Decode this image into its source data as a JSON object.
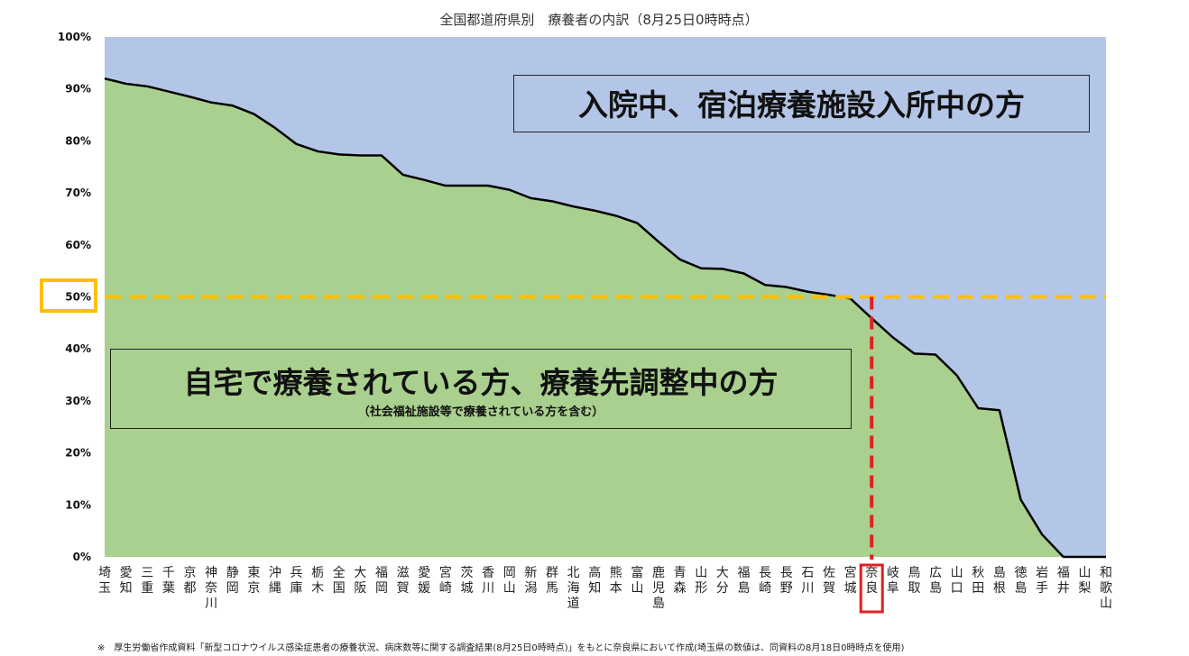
{
  "chart_data": {
    "type": "area",
    "title": "全国都道府県別　療養者の内訳（8月25日0時時点）",
    "ylim": [
      0,
      100
    ],
    "y_ticks": [
      "0%",
      "10%",
      "20%",
      "30%",
      "40%",
      "50%",
      "60%",
      "70%",
      "80%",
      "90%",
      "100%"
    ],
    "categories": [
      "埼玉",
      "愛知",
      "三重",
      "千葉",
      "京都",
      "神奈川",
      "静岡",
      "東京",
      "沖縄",
      "兵庫",
      "栃木",
      "全国",
      "大阪",
      "福岡",
      "滋賀",
      "愛媛",
      "宮崎",
      "茨城",
      "香川",
      "岡山",
      "新潟",
      "群馬",
      "北海道",
      "高知",
      "熊本",
      "富山",
      "鹿児島",
      "青森",
      "山形",
      "大分",
      "福島",
      "長崎",
      "長野",
      "石川",
      "佐賀",
      "宮城",
      "奈良",
      "岐阜",
      "鳥取",
      "広島",
      "山口",
      "秋田",
      "島根",
      "徳島",
      "岩手",
      "福井",
      "山梨",
      "和歌山"
    ],
    "series": [
      {
        "values": [
          92,
          91,
          90.5,
          89.5,
          88.5,
          87.4,
          86.8,
          85.2,
          82.5,
          79.4,
          78.0,
          77.4,
          77.2,
          77.2,
          73.5,
          72.5,
          71.4,
          71.4,
          71.4,
          70.6,
          69.0,
          68.4,
          67.4,
          66.6,
          65.6,
          64.2,
          60.6,
          57.2,
          55.5,
          55.4,
          54.5,
          52.3,
          51.9,
          51.0,
          50.4,
          49.7,
          45.9,
          42.2,
          39.1,
          38.9,
          34.9,
          28.6,
          28.2,
          11.0,
          4.3,
          0,
          0,
          0
        ],
        "fill": "#a9d08e"
      },
      {
        "values": [
          8,
          9,
          9.5,
          10.5,
          11.5,
          12.6,
          13.2,
          14.8,
          17.5,
          20.6,
          22.0,
          22.6,
          22.8,
          22.8,
          26.5,
          27.5,
          28.6,
          28.6,
          28.6,
          29.4,
          31.0,
          31.6,
          32.6,
          33.4,
          34.4,
          35.8,
          39.4,
          42.8,
          44.5,
          44.6,
          45.5,
          47.7,
          48.1,
          49.0,
          49.6,
          50.3,
          54.1,
          57.8,
          60.9,
          61.1,
          65.1,
          71.4,
          71.8,
          89.0,
          95.7,
          100,
          100,
          100
        ],
        "fill": "#b4c6e7"
      }
    ],
    "reference_line": {
      "y": 50,
      "color": "#ffc000"
    },
    "highlight_category": "奈良",
    "highlight_color": "#e02020",
    "annotations": {
      "upper": "入院中、宿泊療養施設入所中の方",
      "lower": "自宅で療養されている方、療養先調整中の方",
      "lower_sub": "（社会福祉施設等で療養されている方を含む）"
    },
    "footnote": "※　厚生労働省作成資料「新型コロナウイルス感染症患者の療養状況、病床数等に関する調査結果(8月25日0時時点)」をもとに奈良県において作成(埼玉県の数値は、同資料の8月18日0時時点を使用)"
  }
}
